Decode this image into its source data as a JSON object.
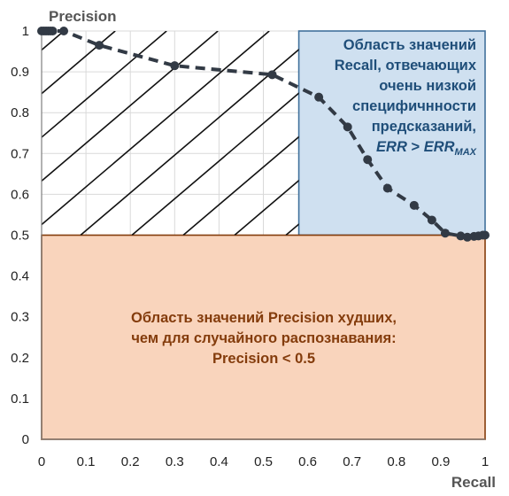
{
  "chart_data": {
    "type": "line",
    "xlabel": "Recall",
    "ylabel": "Precision",
    "xlim": [
      0,
      1
    ],
    "ylim": [
      0,
      1
    ],
    "x_ticks": [
      "0",
      "0.1",
      "0.2",
      "0.3",
      "0.4",
      "0.5",
      "0.6",
      "0.7",
      "0.8",
      "0.9",
      "1"
    ],
    "y_ticks": [
      "0",
      "0.1",
      "0.2",
      "0.3",
      "0.4",
      "0.5",
      "0.6",
      "0.7",
      "0.8",
      "0.9",
      "1"
    ],
    "grid": true,
    "legend": "none",
    "series": [
      {
        "x": [
          0,
          0.005,
          0.01,
          0.015,
          0.02,
          0.025,
          0.05,
          0.13,
          0.3,
          0.52,
          0.625,
          0.69,
          0.735,
          0.78,
          0.84,
          0.88,
          0.91,
          0.945,
          0.96,
          0.975,
          0.985,
          0.995,
          1
        ],
        "y": [
          1,
          1,
          1,
          1,
          1,
          1,
          1,
          0.965,
          0.915,
          0.893,
          0.838,
          0.765,
          0.685,
          0.615,
          0.573,
          0.537,
          0.505,
          0.498,
          0.495,
          0.497,
          0.498,
          0.5,
          0.5
        ],
        "color": "#323a45",
        "dashed": true
      }
    ],
    "regions": [
      {
        "id": "low-specificity",
        "color": "#cfe0f0",
        "border": "#41719c",
        "x_range": [
          0.58,
          1
        ],
        "y_range": [
          0.5,
          1
        ],
        "lines": [
          "Область значений",
          "Recall, отвечающих",
          "очень низкой",
          "специфичнности",
          "предсказаний,"
        ],
        "formula": {
          "left": "ERR",
          "op": " > ",
          "right": "ERR",
          "right_sub": "MAX"
        }
      },
      {
        "id": "worse-than-random",
        "color": "#f9d4bc",
        "border": "#843c0c",
        "x_range": [
          0,
          1
        ],
        "y_range": [
          0,
          0.5
        ],
        "lines": [
          "Область значений Precision худших,",
          "чем для случайного распознавания:",
          "Precision < 0.5"
        ]
      }
    ],
    "hatched_region": {
      "x_range": [
        0,
        0.58
      ],
      "y_range": [
        0.5,
        1
      ]
    }
  }
}
